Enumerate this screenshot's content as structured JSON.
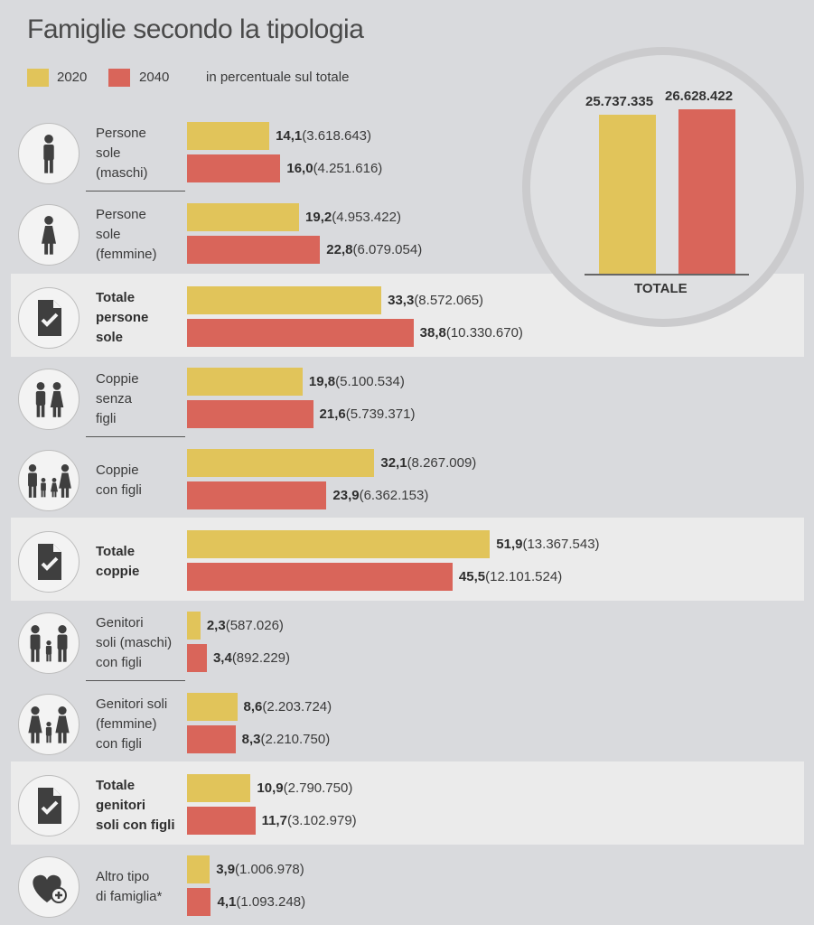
{
  "colors": {
    "y2020": "#e1c45a",
    "y2040": "#d9655a",
    "band": "#ebebeb",
    "icon": "#3f3f3f"
  },
  "chart_data": {
    "type": "bar",
    "orientation": "horizontal",
    "title": "Famiglie secondo la tipologia",
    "unit_note": "in percentuale sul totale",
    "series_names": [
      "2020",
      "2040"
    ],
    "categories": [
      {
        "label": "Persone\nsole\n(maschi)",
        "icon": "man-icon",
        "highlight": false,
        "v2020": 14.1,
        "n2020": "(3.618.643)",
        "v2040": 16.0,
        "n2040": "(4.251.616)",
        "t2020": "14,1",
        "t2040": "16,0"
      },
      {
        "label": "Persone\nsole\n(femmine)",
        "icon": "woman-icon",
        "highlight": false,
        "v2020": 19.2,
        "n2020": "(4.953.422)",
        "v2040": 22.8,
        "n2040": "(6.079.054)",
        "t2020": "19,2",
        "t2040": "22,8"
      },
      {
        "label": "Totale\npersone\nsole",
        "icon": "document-check-icon",
        "highlight": true,
        "v2020": 33.3,
        "n2020": "(8.572.065)",
        "v2040": 38.8,
        "n2040": "(10.330.670)",
        "t2020": "33,3",
        "t2040": "38,8"
      },
      {
        "label": "Coppie\nsenza\nfigli",
        "icon": "couple-icon",
        "highlight": false,
        "v2020": 19.8,
        "n2020": "(5.100.534)",
        "v2040": 21.6,
        "n2040": "(5.739.371)",
        "t2020": "19,8",
        "t2040": "21,6"
      },
      {
        "label": "Coppie\ncon figli",
        "icon": "family-icon",
        "highlight": false,
        "v2020": 32.1,
        "n2020": "(8.267.009)",
        "v2040": 23.9,
        "n2040": "(6.362.153)",
        "t2020": "32,1",
        "t2040": "23,9"
      },
      {
        "label": "Totale\ncoppie",
        "icon": "document-check-icon",
        "highlight": true,
        "v2020": 51.9,
        "n2020": "(13.367.543)",
        "v2040": 45.5,
        "n2040": "(12.101.524)",
        "t2020": "51,9",
        "t2040": "45,5"
      },
      {
        "label": "Genitori\nsoli (maschi)\ncon figli",
        "icon": "father-child-icon",
        "highlight": false,
        "v2020": 2.3,
        "n2020": "(587.026)",
        "v2040": 3.4,
        "n2040": "(892.229)",
        "t2020": "2,3",
        "t2040": "3,4"
      },
      {
        "label": "Genitori soli\n(femmine)\ncon figli",
        "icon": "mother-child-icon",
        "highlight": false,
        "v2020": 8.6,
        "n2020": "(2.203.724)",
        "v2040": 8.3,
        "n2040": "(2.210.750)",
        "t2020": "8,6",
        "t2040": "8,3"
      },
      {
        "label": "Totale\ngenitori\nsoli con figli",
        "icon": "document-check-icon",
        "highlight": true,
        "v2020": 10.9,
        "n2020": "(2.790.750)",
        "v2040": 11.7,
        "n2040": "(3.102.979)",
        "t2020": "10,9",
        "t2040": "11,7"
      },
      {
        "label": "Altro tipo\ndi famiglia*",
        "icon": "heart-plus-icon",
        "highlight": false,
        "v2020": 3.9,
        "n2020": "(1.006.978)",
        "v2040": 4.1,
        "n2040": "(1.093.248)",
        "t2020": "3,9",
        "t2040": "4,1"
      }
    ],
    "totals": {
      "label": "TOTALE",
      "v2020": 25737335,
      "t2020": "25.737.335",
      "v2040": 26628422,
      "t2040": "26.628.422"
    }
  }
}
